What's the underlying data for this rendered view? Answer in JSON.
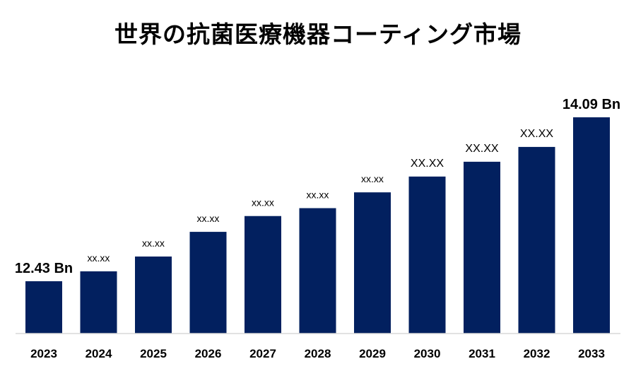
{
  "chart_data": {
    "type": "bar",
    "title": "世界の抗菌医療機器コーティング市場",
    "categories": [
      "2023",
      "2024",
      "2025",
      "2026",
      "2027",
      "2028",
      "2029",
      "2030",
      "2031",
      "2032",
      "2033"
    ],
    "values": [
      12.43,
      12.53,
      12.68,
      12.93,
      13.09,
      13.17,
      13.33,
      13.49,
      13.64,
      13.79,
      14.09
    ],
    "data_labels": [
      "12.43 Bn",
      "xx.xx",
      "xx.xx",
      "xx.xx",
      "xx.xx",
      "xx.xx",
      "xx.xx",
      "XX.XX",
      "XX.XX",
      "XX.XX",
      "14.09 Bn"
    ],
    "ylim": [
      11.9,
      14.4
    ],
    "bar_color": "#02205f",
    "grid": false,
    "legend": "none"
  }
}
